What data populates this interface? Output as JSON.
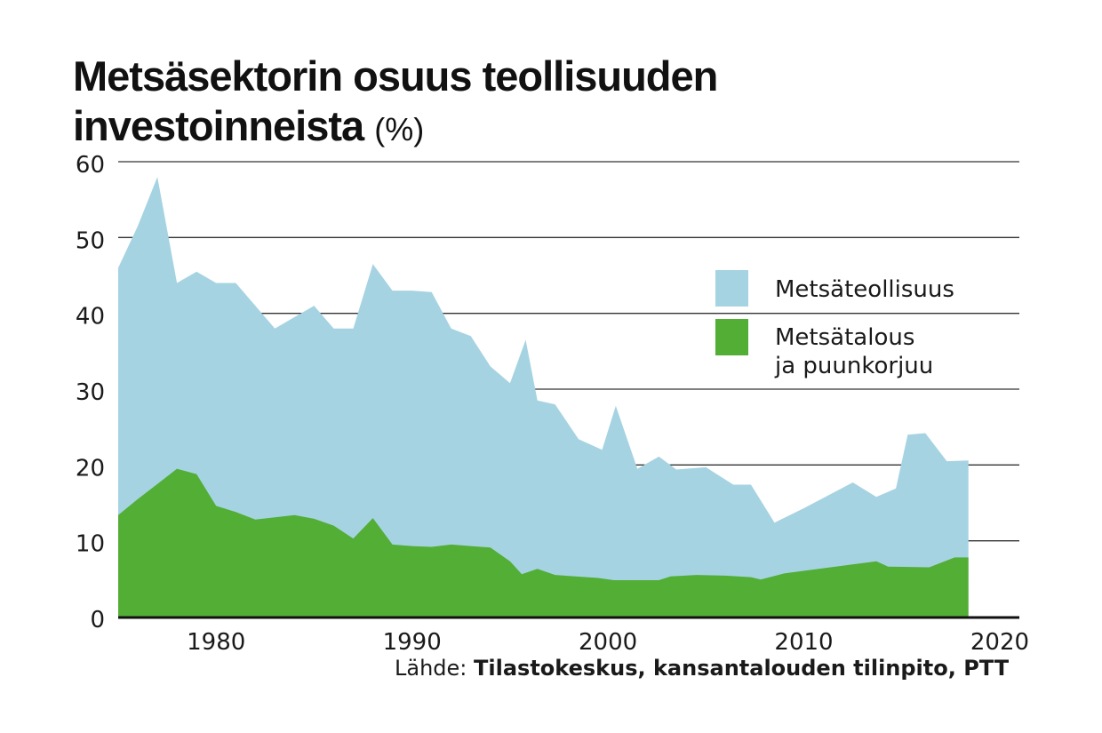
{
  "title": {
    "main": "Metsäsektorin osuus teollisuuden investoinneista",
    "unit": "(%)"
  },
  "source": {
    "prefix": "Lähde:",
    "text": "Tilastokeskus, kansantalouden tilinpito, PTT"
  },
  "colors": {
    "metsateollisuus": "#a6d3e2",
    "metsatalous": "#52ae35",
    "gridline": "#333333",
    "axis": "#111111"
  },
  "chart_data": {
    "type": "area",
    "stacked": false,
    "xlim": [
      1975,
      2021
    ],
    "ylim": [
      0,
      60
    ],
    "yticks": [
      "0",
      "10",
      "20",
      "30",
      "40",
      "50",
      "60"
    ],
    "xticks": [
      "1980",
      "1990",
      "2000",
      "2010",
      "2020"
    ],
    "xtick_values": [
      1980,
      1990,
      2000,
      2010,
      2020
    ],
    "ytick_values": [
      0,
      10,
      20,
      30,
      40,
      50,
      60
    ],
    "grid": "horizontal",
    "legend_position": "right",
    "series": [
      {
        "name": "Metsäteollisuus",
        "color_key": "metsateollisuus",
        "points": [
          [
            1975,
            46
          ],
          [
            1976,
            51.5
          ],
          [
            1977,
            58
          ],
          [
            1978,
            44
          ],
          [
            1979,
            45.5
          ],
          [
            1980,
            44
          ],
          [
            1981,
            44
          ],
          [
            1982,
            41
          ],
          [
            1983,
            38
          ],
          [
            1984,
            39.5
          ],
          [
            1985,
            41
          ],
          [
            1986,
            38
          ],
          [
            1987,
            38
          ],
          [
            1988,
            46.5
          ],
          [
            1989,
            43
          ],
          [
            1990,
            43
          ],
          [
            1991,
            42.8
          ],
          [
            1992,
            38
          ],
          [
            1993,
            37
          ],
          [
            1994,
            33
          ],
          [
            1995,
            30.8
          ],
          [
            1995.8,
            36.5
          ],
          [
            1996.4,
            28.5
          ],
          [
            1997.3,
            28
          ],
          [
            1998.5,
            23.4
          ],
          [
            1999.7,
            22
          ],
          [
            2000.4,
            27.8
          ],
          [
            2001.5,
            19.5
          ],
          [
            2002.6,
            21.1
          ],
          [
            2003.5,
            19.4
          ],
          [
            2005,
            19.7
          ],
          [
            2006.4,
            17.4
          ],
          [
            2007.3,
            17.4
          ],
          [
            2008.5,
            12.4
          ],
          [
            2010,
            14.3
          ],
          [
            2012.5,
            17.7
          ],
          [
            2013.7,
            15.8
          ],
          [
            2014.7,
            16.9
          ],
          [
            2015.3,
            24
          ],
          [
            2016.2,
            24.2
          ],
          [
            2017.3,
            20.5
          ],
          [
            2018.4,
            20.6
          ]
        ]
      },
      {
        "name": "Metsätalous ja puunkorjuu",
        "name_line1": "Metsätalous",
        "name_line2": "ja puunkorjuu",
        "color_key": "metsatalous",
        "points": [
          [
            1975,
            13.4
          ],
          [
            1976,
            15.5
          ],
          [
            1977,
            17.5
          ],
          [
            1978,
            19.5
          ],
          [
            1979,
            18.8
          ],
          [
            1980,
            14.6
          ],
          [
            1981,
            13.8
          ],
          [
            1982,
            12.8
          ],
          [
            1983,
            13.1
          ],
          [
            1984,
            13.4
          ],
          [
            1985,
            12.9
          ],
          [
            1986,
            12
          ],
          [
            1987,
            10.3
          ],
          [
            1988,
            13
          ],
          [
            1989,
            9.5
          ],
          [
            1990,
            9.3
          ],
          [
            1991,
            9.2
          ],
          [
            1992,
            9.5
          ],
          [
            1993,
            9.3
          ],
          [
            1994,
            9.1
          ],
          [
            1995,
            7.3
          ],
          [
            1995.6,
            5.6
          ],
          [
            1996.4,
            6.3
          ],
          [
            1997.3,
            5.5
          ],
          [
            1999.5,
            5.1
          ],
          [
            2000.3,
            4.8
          ],
          [
            2002.6,
            4.8
          ],
          [
            2003.2,
            5.3
          ],
          [
            2004.5,
            5.5
          ],
          [
            2006,
            5.4
          ],
          [
            2007.3,
            5.2
          ],
          [
            2007.8,
            4.9
          ],
          [
            2009,
            5.7
          ],
          [
            2013.7,
            7.3
          ],
          [
            2014.3,
            6.6
          ],
          [
            2016.4,
            6.5
          ],
          [
            2017.7,
            7.8
          ],
          [
            2018.4,
            7.8
          ]
        ]
      }
    ]
  }
}
